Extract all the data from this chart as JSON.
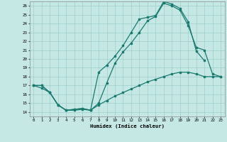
{
  "xlabel": "Humidex (Indice chaleur)",
  "xlim": [
    -0.5,
    23.5
  ],
  "ylim": [
    13.5,
    26.5
  ],
  "xticks": [
    0,
    1,
    2,
    3,
    4,
    5,
    6,
    7,
    8,
    9,
    10,
    11,
    12,
    13,
    14,
    15,
    16,
    17,
    18,
    19,
    20,
    21,
    22,
    23
  ],
  "yticks": [
    14,
    15,
    16,
    17,
    18,
    19,
    20,
    21,
    22,
    23,
    24,
    25,
    26
  ],
  "background_color": "#c5e8e5",
  "grid_color": "#9ecfcb",
  "line_color": "#1a7a70",
  "line1_x": [
    0,
    1,
    2,
    3,
    4,
    5,
    6,
    7,
    8,
    9,
    10,
    11,
    12,
    13,
    14,
    15,
    16,
    17,
    18,
    19,
    20,
    21
  ],
  "line1_y": [
    17.0,
    16.7,
    16.2,
    14.8,
    14.2,
    14.2,
    14.3,
    14.2,
    18.5,
    19.3,
    20.3,
    21.5,
    23.0,
    24.5,
    24.7,
    24.9,
    26.5,
    26.2,
    25.7,
    24.2,
    20.9,
    19.8
  ],
  "line2_x": [
    0,
    1,
    2,
    3,
    4,
    5,
    6,
    7,
    8,
    9,
    10,
    11,
    12,
    13,
    14,
    15,
    16,
    17,
    18,
    19,
    20,
    21,
    22,
    23
  ],
  "line2_y": [
    17.0,
    17.0,
    16.2,
    14.8,
    14.2,
    14.3,
    14.4,
    14.2,
    15.0,
    17.3,
    19.5,
    20.8,
    21.8,
    23.0,
    24.3,
    24.8,
    26.3,
    26.0,
    25.5,
    23.8,
    21.3,
    21.0,
    18.3,
    18.0
  ],
  "line3_x": [
    0,
    1,
    2,
    3,
    4,
    5,
    6,
    7,
    8,
    9,
    10,
    11,
    12,
    13,
    14,
    15,
    16,
    17,
    18,
    19,
    20,
    21,
    22,
    23
  ],
  "line3_y": [
    17.0,
    17.0,
    16.2,
    14.8,
    14.2,
    14.3,
    14.4,
    14.2,
    14.8,
    15.3,
    15.8,
    16.2,
    16.6,
    17.0,
    17.4,
    17.7,
    18.0,
    18.3,
    18.5,
    18.5,
    18.3,
    18.0,
    18.0,
    18.0
  ]
}
